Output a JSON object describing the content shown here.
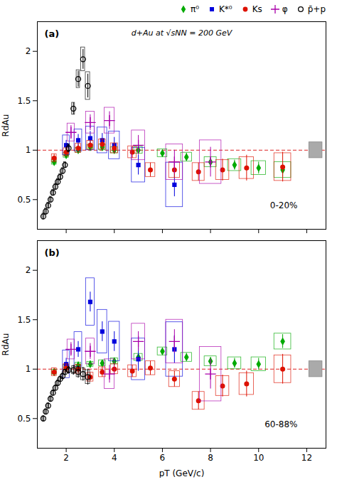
{
  "chart_data": [
    {
      "type": "scatter",
      "title": "d+Au at √sNN = 200 GeV",
      "xlabel": null,
      "ylabel": "RdAu",
      "annotations": [
        "(a)",
        "0-20%"
      ],
      "xlim": [
        0.8,
        12.8
      ],
      "ylim": [
        0.2,
        2.3
      ],
      "xticks": [
        2,
        4,
        6,
        8,
        10,
        12
      ],
      "yticks": [
        0.5,
        1,
        1.5,
        2
      ],
      "tick_labels": "y",
      "grid": false,
      "legend": "upper right",
      "reference_line": {
        "y": 1.0,
        "color": "#dd2222",
        "line_style": "dashed"
      },
      "norm_box": {
        "x": 12.1,
        "y": 0.92,
        "width": 0.55,
        "height": 0.16,
        "color": "#aaaaaa"
      },
      "series": [
        {
          "name": "π⁰",
          "color": "#00aa00",
          "marker": "diamond",
          "x": [
            1.5,
            2.0,
            2.5,
            3.0,
            3.5,
            4.0,
            5.0,
            6.0,
            7.0,
            8.0,
            9.0,
            10.0,
            11.0
          ],
          "values": [
            0.88,
            0.95,
            1.0,
            1.03,
            1.03,
            1.0,
            1.0,
            0.97,
            0.93,
            0.88,
            0.85,
            0.82,
            0.8
          ],
          "yerr": [
            0.03,
            0.03,
            0.03,
            0.03,
            0.03,
            0.03,
            0.03,
            0.03,
            0.04,
            0.04,
            0.05,
            0.06,
            0.07
          ],
          "box_w": [
            0.2,
            0.22,
            0.24,
            0.26,
            0.28,
            0.3,
            0.35,
            0.4,
            0.45,
            0.5,
            0.55,
            0.6,
            0.7
          ],
          "box_h": [
            0.05,
            0.05,
            0.05,
            0.05,
            0.06,
            0.06,
            0.07,
            0.08,
            0.09,
            0.1,
            0.12,
            0.14,
            0.16
          ]
        },
        {
          "name": "K*⁰",
          "color": "#0000dd",
          "marker": "square",
          "x": [
            2.0,
            2.5,
            3.0,
            3.5,
            4.0,
            5.0,
            6.5
          ],
          "values": [
            1.05,
            1.1,
            1.12,
            1.1,
            1.05,
            0.85,
            0.65
          ],
          "yerr": [
            0.05,
            0.06,
            0.07,
            0.07,
            0.08,
            0.1,
            0.12
          ],
          "box_w": [
            0.28,
            0.32,
            0.36,
            0.4,
            0.45,
            0.55,
            0.7
          ],
          "box_h": [
            0.2,
            0.22,
            0.24,
            0.26,
            0.28,
            0.35,
            0.45
          ]
        },
        {
          "name": "Ks",
          "color": "#dd1100",
          "marker": "circle",
          "x": [
            1.5,
            2.0,
            2.5,
            3.0,
            3.5,
            4.0,
            4.75,
            5.5,
            6.5,
            7.5,
            8.5,
            9.5,
            11.0
          ],
          "values": [
            0.92,
            0.98,
            1.02,
            1.05,
            1.06,
            1.02,
            0.98,
            0.8,
            0.8,
            0.78,
            0.8,
            0.82,
            0.83
          ],
          "yerr": [
            0.04,
            0.04,
            0.04,
            0.04,
            0.05,
            0.05,
            0.06,
            0.07,
            0.08,
            0.09,
            0.11,
            0.13,
            0.15
          ],
          "box_w": [
            0.2,
            0.22,
            0.24,
            0.26,
            0.28,
            0.3,
            0.35,
            0.4,
            0.45,
            0.5,
            0.55,
            0.6,
            0.7
          ],
          "box_h": [
            0.08,
            0.08,
            0.09,
            0.09,
            0.1,
            0.1,
            0.12,
            0.14,
            0.16,
            0.18,
            0.2,
            0.22,
            0.28
          ]
        },
        {
          "name": "φ",
          "color": "#aa00aa",
          "marker": "plus",
          "x": [
            2.2,
            3.0,
            3.8,
            5.0,
            6.5,
            8.0
          ],
          "values": [
            1.18,
            1.28,
            1.3,
            1.05,
            0.88,
            0.88
          ],
          "yerr": [
            0.07,
            0.08,
            0.09,
            0.1,
            0.12,
            0.15
          ],
          "box_w": [
            0.3,
            0.36,
            0.42,
            0.55,
            0.7,
            0.9
          ],
          "box_h": [
            0.18,
            0.22,
            0.26,
            0.3,
            0.36,
            0.44
          ]
        },
        {
          "name": "p̄+p",
          "color": "black",
          "marker": "open circle",
          "x": [
            1.05,
            1.15,
            1.25,
            1.35,
            1.45,
            1.55,
            1.65,
            1.75,
            1.85,
            1.95,
            2.1,
            2.3,
            2.5,
            2.7,
            2.9
          ],
          "values": [
            0.33,
            0.38,
            0.44,
            0.5,
            0.57,
            0.63,
            0.68,
            0.73,
            0.79,
            0.85,
            1.02,
            1.42,
            1.72,
            1.92,
            1.65
          ],
          "yerr": [
            0.03,
            0.03,
            0.03,
            0.03,
            0.03,
            0.03,
            0.03,
            0.03,
            0.03,
            0.03,
            0.04,
            0.06,
            0.08,
            0.1,
            0.12
          ],
          "box_w": [
            0.08,
            0.08,
            0.08,
            0.08,
            0.08,
            0.08,
            0.08,
            0.08,
            0.08,
            0.08,
            0.1,
            0.12,
            0.14,
            0.16,
            0.18
          ],
          "box_h": [
            0.06,
            0.06,
            0.06,
            0.06,
            0.06,
            0.06,
            0.06,
            0.06,
            0.06,
            0.06,
            0.08,
            0.12,
            0.18,
            0.24,
            0.28
          ]
        }
      ]
    },
    {
      "type": "scatter",
      "xlabel": "pT (GeV/c)",
      "ylabel": "RdAu",
      "annotations": [
        "(b)",
        "60-88%"
      ],
      "xlim": [
        0.8,
        12.8
      ],
      "ylim": [
        0.2,
        2.3
      ],
      "xticks": [
        2,
        4,
        6,
        8,
        10,
        12
      ],
      "yticks": [
        0.5,
        1,
        1.5,
        2
      ],
      "grid": false,
      "reference_line": {
        "y": 1.0,
        "color": "#dd2222",
        "line_style": "dashed"
      },
      "norm_box": {
        "x": 12.1,
        "y": 0.92,
        "width": 0.55,
        "height": 0.16,
        "color": "#aaaaaa"
      },
      "series": [
        {
          "name": "π⁰",
          "color": "#00aa00",
          "marker": "diamond",
          "x": [
            1.5,
            2.0,
            2.5,
            3.0,
            3.5,
            4.0,
            5.0,
            6.0,
            7.0,
            8.0,
            9.0,
            10.0,
            11.0
          ],
          "values": [
            0.97,
            1.02,
            1.04,
            1.05,
            1.06,
            1.08,
            1.12,
            1.18,
            1.12,
            1.08,
            1.06,
            1.05,
            1.28
          ],
          "yerr": [
            0.03,
            0.03,
            0.03,
            0.03,
            0.03,
            0.03,
            0.03,
            0.03,
            0.04,
            0.04,
            0.05,
            0.06,
            0.07
          ],
          "box_w": [
            0.2,
            0.22,
            0.24,
            0.26,
            0.28,
            0.3,
            0.35,
            0.4,
            0.45,
            0.5,
            0.55,
            0.6,
            0.7
          ],
          "box_h": [
            0.05,
            0.05,
            0.05,
            0.05,
            0.06,
            0.06,
            0.07,
            0.08,
            0.09,
            0.1,
            0.12,
            0.14,
            0.16
          ]
        },
        {
          "name": "K*⁰",
          "color": "#0000dd",
          "marker": "square",
          "x": [
            2.0,
            2.5,
            3.0,
            3.5,
            4.0,
            5.0,
            6.5
          ],
          "values": [
            1.05,
            1.2,
            1.68,
            1.38,
            1.28,
            1.1,
            1.2
          ],
          "yerr": [
            0.06,
            0.08,
            0.1,
            0.1,
            0.1,
            0.12,
            0.14
          ],
          "box_w": [
            0.28,
            0.32,
            0.36,
            0.4,
            0.45,
            0.55,
            0.7
          ],
          "box_h": [
            0.28,
            0.35,
            0.48,
            0.44,
            0.4,
            0.42,
            0.55
          ]
        },
        {
          "name": "Ks",
          "color": "#dd1100",
          "marker": "circle",
          "x": [
            1.5,
            2.0,
            2.5,
            3.0,
            3.5,
            4.0,
            4.75,
            5.5,
            6.5,
            7.5,
            8.5,
            9.5,
            11.0
          ],
          "values": [
            0.97,
            1.01,
            1.0,
            0.92,
            0.97,
            1.0,
            0.98,
            1.01,
            0.9,
            0.68,
            0.83,
            0.85,
            1.0
          ],
          "yerr": [
            0.04,
            0.04,
            0.04,
            0.04,
            0.05,
            0.05,
            0.06,
            0.07,
            0.08,
            0.09,
            0.11,
            0.13,
            0.15
          ],
          "box_w": [
            0.2,
            0.22,
            0.24,
            0.26,
            0.28,
            0.3,
            0.35,
            0.4,
            0.45,
            0.5,
            0.55,
            0.6,
            0.7
          ],
          "box_h": [
            0.08,
            0.08,
            0.09,
            0.09,
            0.1,
            0.1,
            0.12,
            0.14,
            0.16,
            0.18,
            0.2,
            0.22,
            0.28
          ]
        },
        {
          "name": "φ",
          "color": "#aa00aa",
          "marker": "plus",
          "x": [
            2.2,
            3.0,
            3.8,
            5.0,
            6.5,
            8.0
          ],
          "values": [
            1.2,
            1.18,
            0.95,
            1.28,
            1.28,
            0.95
          ],
          "yerr": [
            0.07,
            0.08,
            0.09,
            0.1,
            0.12,
            0.15
          ],
          "box_w": [
            0.3,
            0.36,
            0.42,
            0.55,
            0.7,
            0.9
          ],
          "box_h": [
            0.2,
            0.26,
            0.3,
            0.36,
            0.44,
            0.55
          ]
        },
        {
          "name": "p̄+p",
          "color": "black",
          "marker": "open circle",
          "x": [
            1.05,
            1.15,
            1.25,
            1.35,
            1.45,
            1.55,
            1.65,
            1.75,
            1.85,
            1.95,
            2.1,
            2.3,
            2.5,
            2.7,
            2.9
          ],
          "values": [
            0.5,
            0.57,
            0.63,
            0.7,
            0.76,
            0.81,
            0.86,
            0.9,
            0.93,
            0.97,
            0.99,
            0.99,
            0.97,
            0.95,
            0.92
          ],
          "yerr": [
            0.03,
            0.03,
            0.03,
            0.03,
            0.03,
            0.03,
            0.03,
            0.03,
            0.03,
            0.03,
            0.04,
            0.05,
            0.06,
            0.07,
            0.08
          ],
          "box_w": [
            0.08,
            0.08,
            0.08,
            0.08,
            0.08,
            0.08,
            0.08,
            0.08,
            0.08,
            0.08,
            0.1,
            0.12,
            0.14,
            0.16,
            0.18
          ],
          "box_h": [
            0.05,
            0.05,
            0.05,
            0.05,
            0.05,
            0.05,
            0.05,
            0.05,
            0.05,
            0.05,
            0.06,
            0.08,
            0.1,
            0.12,
            0.14
          ]
        }
      ]
    }
  ]
}
